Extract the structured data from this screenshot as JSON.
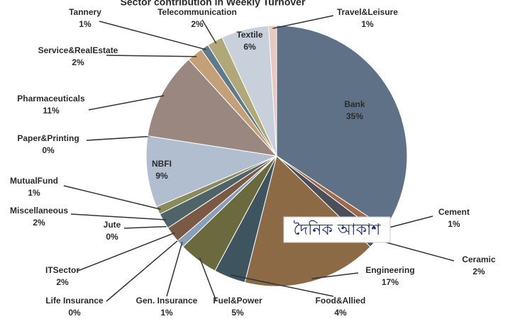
{
  "chart_data": {
    "type": "pie",
    "title": "Sector contribution in Weekly Turnover",
    "categories": [
      "Bank",
      "Cement",
      "Ceramic",
      "Engineering",
      "Food&Allied",
      "Fuel&Power",
      "Gen. Insurance",
      "Life Insurance",
      "ITSector",
      "Jute",
      "Miscellaneous",
      "MutualFund",
      "NBFI",
      "Paper&Printing",
      "Pharmaceuticals",
      "Service&RealEstate",
      "Tannery",
      "Telecommunication",
      "Textile",
      "Travel&Leisure"
    ],
    "values": [
      35,
      1,
      2,
      17,
      4,
      5,
      1,
      0,
      2,
      0,
      2,
      1,
      9,
      0,
      11,
      2,
      1,
      2,
      6,
      1
    ],
    "value_labels": [
      "35%",
      "1%",
      "2%",
      "17%",
      "4%",
      "5%",
      "1%",
      "0%",
      "2%",
      "0%",
      "2%",
      "1%",
      "9%",
      "0%",
      "11%",
      "2%",
      "1%",
      "2%",
      "6%",
      "1%"
    ],
    "colors": [
      "#5f7186",
      "#a0694a",
      "#4a4f5a",
      "#8b6a45",
      "#3e5560",
      "#6b6a3e",
      "#8aa0b8",
      "#c8c0a0",
      "#7a5a45",
      "#a08870",
      "#4f6468",
      "#8a8a5a",
      "#b0bed0",
      "#d8c8b0",
      "#9a8880",
      "#c4a078",
      "#5f7a8a",
      "#b0a878",
      "#c8d0dc",
      "#e8c8c0"
    ],
    "watermark": "দৈনিক আকাশ"
  }
}
